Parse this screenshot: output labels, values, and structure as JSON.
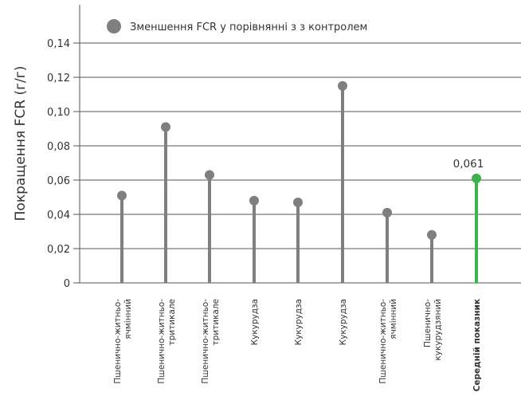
{
  "chart_data": {
    "type": "lollipop",
    "ylabel": "Покращення FCR (г/г)",
    "ylim": [
      0,
      0.15
    ],
    "yticks": [
      "0",
      "0,02",
      "0,04",
      "0,06",
      "0,08",
      "0,10",
      "0,12",
      "0,14"
    ],
    "grid": true,
    "legend": {
      "label": "Зменшення FCR у порівнянні з з контролем",
      "position": "top-left"
    },
    "categories": [
      [
        "Пшенично-житньо-",
        "ячмінний"
      ],
      [
        "Пшенично-житньо-",
        "тритикале"
      ],
      [
        "Пшенично-житньо-",
        "тритикале"
      ],
      [
        "Кукурудза"
      ],
      [
        "Кукурудза"
      ],
      [
        "Кукурудза"
      ],
      [
        "Пшенично-житньо-",
        "ячмінний"
      ],
      [
        "Пшенично-",
        "кукурудзяний"
      ],
      [
        "Середній показник"
      ]
    ],
    "values": [
      0.051,
      0.091,
      0.063,
      0.048,
      0.047,
      0.115,
      0.041,
      0.028,
      0.061
    ],
    "highlight_index": 8,
    "highlight_label": "0,061",
    "colors": {
      "series": "#7f7f7f",
      "highlight": "#3cb44b",
      "grid": "#555555",
      "text": "#333333"
    }
  }
}
